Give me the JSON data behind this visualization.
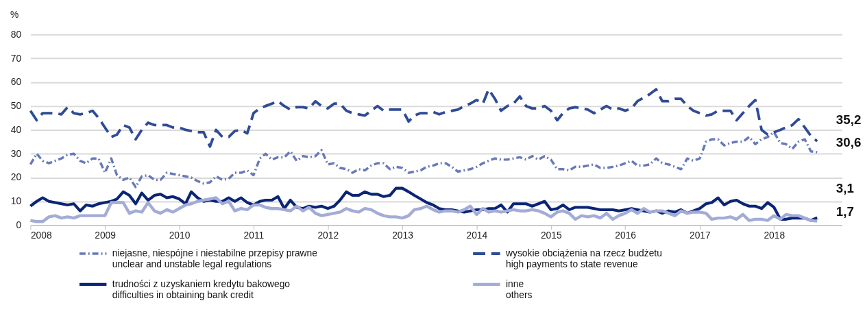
{
  "chart_data": {
    "type": "line",
    "ylabel": "%",
    "x": [
      "2008-01",
      "2008-02",
      "2008-03",
      "2008-04",
      "2008-05",
      "2008-06",
      "2008-07",
      "2008-08",
      "2008-09",
      "2008-10",
      "2008-11",
      "2008-12",
      "2009-01",
      "2009-02",
      "2009-03",
      "2009-04",
      "2009-05",
      "2009-06",
      "2009-07",
      "2009-08",
      "2009-09",
      "2009-10",
      "2009-11",
      "2009-12",
      "2010-01",
      "2010-02",
      "2010-03",
      "2010-04",
      "2010-05",
      "2010-06",
      "2010-07",
      "2010-08",
      "2010-09",
      "2010-10",
      "2010-11",
      "2010-12",
      "2011-01",
      "2011-02",
      "2011-03",
      "2011-04",
      "2011-05",
      "2011-06",
      "2011-07",
      "2011-08",
      "2011-09",
      "2011-10",
      "2011-11",
      "2011-12",
      "2012-01",
      "2012-02",
      "2012-03",
      "2012-04",
      "2012-05",
      "2012-06",
      "2012-07",
      "2012-08",
      "2012-09",
      "2012-10",
      "2012-11",
      "2012-12",
      "2013-01",
      "2013-02",
      "2013-03",
      "2013-04",
      "2013-05",
      "2013-06",
      "2013-07",
      "2013-08",
      "2013-09",
      "2013-10",
      "2013-11",
      "2013-12",
      "2014-01",
      "2014-02",
      "2014-03",
      "2014-04",
      "2014-05",
      "2014-06",
      "2014-07",
      "2014-08",
      "2014-09",
      "2014-10",
      "2014-11",
      "2014-12",
      "2015-01",
      "2015-02",
      "2015-03",
      "2015-04",
      "2015-05",
      "2015-06",
      "2015-07",
      "2015-08",
      "2015-09",
      "2015-10",
      "2015-11",
      "2015-12",
      "2016-01",
      "2016-02",
      "2016-03",
      "2016-04",
      "2016-05",
      "2016-06",
      "2016-07",
      "2016-08",
      "2016-09",
      "2016-10",
      "2016-11",
      "2016-12",
      "2017-01",
      "2017-02",
      "2017-03",
      "2017-04",
      "2017-05",
      "2017-06",
      "2017-07",
      "2017-08",
      "2017-09",
      "2017-10",
      "2017-11",
      "2017-12",
      "2018-01",
      "2018-02",
      "2018-03",
      "2018-04",
      "2018-05",
      "2018-06",
      "2018-07",
      "2018-08"
    ],
    "series": [
      {
        "name": "niejasne, niespójne i niestabilne przepisy prawne\nunclear and unstable legal regulations",
        "color": "#6779b8",
        "line_style": "dashdot",
        "values": [
          25.5,
          30,
          27,
          26,
          27,
          28,
          29.5,
          30,
          27,
          26,
          28,
          28,
          22,
          28,
          21,
          19,
          20,
          16,
          20.5,
          21,
          19,
          19,
          22,
          21.5,
          21,
          20.5,
          20,
          18.5,
          17.5,
          18,
          20.5,
          19,
          19.5,
          22,
          22,
          23,
          21,
          28,
          30,
          27.5,
          28.5,
          28.5,
          31,
          27,
          29,
          28.5,
          29,
          31.5,
          25.5,
          26,
          24,
          23.5,
          22,
          23.5,
          23,
          25,
          26,
          26,
          23.5,
          24.5,
          24,
          22,
          22.5,
          23,
          24.5,
          25,
          26,
          26,
          24.5,
          22.5,
          23,
          23.5,
          24.5,
          26,
          27,
          28,
          27.5,
          27.5,
          28,
          28.5,
          27.5,
          29,
          27.5,
          29,
          27.5,
          23.5,
          23.5,
          23,
          24.5,
          24.5,
          25,
          25.5,
          24,
          24,
          24.5,
          25,
          26,
          27,
          25,
          25,
          25.5,
          28,
          26,
          25.5,
          24.5,
          23.5,
          28,
          27,
          28,
          35,
          36,
          36,
          33.5,
          34.5,
          35,
          35,
          37,
          34,
          36,
          37,
          39,
          34.5,
          34,
          32,
          35,
          36,
          31,
          30.6
        ]
      },
      {
        "name": "wysokie obciążenia na rzecz budżetu\nhigh payments to state revenue",
        "color": "#2f4b96",
        "line_style": "dashed",
        "values": [
          48,
          44,
          47,
          47,
          47,
          46.5,
          49.5,
          47,
          46.5,
          47,
          48,
          45,
          41,
          37,
          38,
          42,
          41,
          36,
          40,
          43,
          42,
          42,
          42,
          41,
          41,
          40,
          39.5,
          39,
          39,
          33,
          40,
          37,
          37,
          39.5,
          40,
          38.5,
          47,
          49,
          50,
          51,
          52,
          50,
          48.5,
          49.5,
          49.5,
          49,
          52,
          50,
          49,
          51,
          51,
          48,
          47,
          46.5,
          46,
          48,
          50,
          48,
          48.5,
          48.5,
          48.5,
          43.5,
          46,
          47,
          47,
          47.5,
          46.5,
          47.5,
          48,
          48.5,
          50,
          51,
          52.5,
          51,
          57,
          53,
          48,
          50,
          51,
          54,
          50,
          49,
          49,
          50,
          48,
          44,
          47,
          49,
          49.5,
          49,
          48.5,
          47,
          48.5,
          50,
          48.5,
          49,
          48,
          49,
          52,
          53.5,
          55,
          57,
          52,
          52,
          53,
          53,
          50,
          48,
          47,
          46,
          46.5,
          48,
          48,
          48,
          44,
          47,
          50,
          52.5,
          40,
          38,
          39,
          40,
          41,
          42,
          44.5,
          41,
          37.5,
          35.2
        ]
      },
      {
        "name": "trudności z uzyskaniem kredytu bakowego\ndifficulties in obtaining bank credit",
        "color": "#0a2576",
        "line_style": "solid",
        "values": [
          8,
          10,
          11.5,
          10,
          9.5,
          9,
          8.5,
          9,
          6,
          8.5,
          8,
          9,
          9.5,
          10,
          11,
          14,
          12.5,
          9,
          13.5,
          10.5,
          12.5,
          13,
          11.5,
          12,
          11,
          9,
          14,
          11.5,
          10,
          10.5,
          10,
          10,
          11.5,
          10,
          11.5,
          9.5,
          8.5,
          10,
          10.5,
          10.5,
          12,
          7,
          10.5,
          7.5,
          7,
          8,
          7.5,
          8,
          7,
          8,
          10.5,
          14,
          12.5,
          12.5,
          14,
          13,
          13,
          12,
          12.5,
          15.5,
          15.5,
          14,
          12.5,
          11,
          9.5,
          8.5,
          7,
          6.5,
          6.5,
          6,
          5.5,
          6,
          6.5,
          6.5,
          7,
          7,
          8.5,
          5.5,
          9,
          9,
          9,
          8,
          9,
          10,
          6.5,
          7,
          8.5,
          6.5,
          7.5,
          7.5,
          7.5,
          7,
          6.5,
          6.5,
          6.5,
          6,
          6.5,
          7,
          6.5,
          6,
          5.5,
          6,
          5,
          6,
          5.5,
          6.5,
          5,
          6,
          7,
          9,
          9.5,
          11.5,
          8.5,
          10,
          10.5,
          9,
          8,
          8,
          7,
          9.5,
          7.5,
          2.5,
          2.5,
          3,
          3,
          3,
          2,
          3.1
        ]
      },
      {
        "name": "inne\nothers",
        "color": "#a3acd6",
        "line_style": "solid",
        "values": [
          2,
          1.5,
          1.5,
          3.5,
          4,
          3,
          3.5,
          3,
          4,
          4,
          4,
          4,
          4,
          9.5,
          9.5,
          9.5,
          5,
          6,
          5.5,
          9.5,
          6,
          5,
          6.5,
          5.5,
          7,
          8.5,
          9,
          10,
          10.5,
          11,
          11.5,
          9,
          10,
          6,
          7,
          6.5,
          8.5,
          8.5,
          7.5,
          7,
          7,
          6.5,
          6,
          8,
          6,
          7.5,
          5,
          4,
          4.5,
          5,
          5.5,
          7,
          6,
          5.5,
          7,
          6.5,
          5,
          4,
          3.5,
          3.5,
          3,
          4,
          6.5,
          7,
          8,
          6.5,
          5.5,
          6,
          6,
          5.5,
          6.5,
          8,
          4.5,
          7,
          5.5,
          6,
          5.5,
          6,
          6.5,
          6,
          6,
          6.5,
          6,
          5,
          3.5,
          5.5,
          6,
          5,
          2.5,
          4,
          3.5,
          4,
          3,
          5,
          2.5,
          4,
          5,
          6.5,
          5,
          7,
          5.5,
          6,
          6,
          5,
          4,
          6,
          5,
          5.5,
          5.5,
          5,
          2.5,
          3,
          3,
          3.5,
          2.5,
          4.5,
          2,
          2.5,
          2.5,
          2,
          4,
          2.5,
          4.5,
          4,
          4,
          3,
          2,
          1.7
        ]
      }
    ],
    "annotations": [
      {
        "text": "35,2",
        "x": "2018-08",
        "y": 35.2
      },
      {
        "text": "30,6",
        "x": "2018-08",
        "y": 30.6
      },
      {
        "text": "3,1",
        "x": "2018-08",
        "y": 3.1
      },
      {
        "text": "1,7",
        "x": "2018-08",
        "y": 1.7
      }
    ],
    "xlim": [
      "2008-01",
      "2018-12"
    ],
    "xticks": [
      "2008",
      "2009",
      "2010",
      "2011",
      "2012",
      "2013",
      "2014",
      "2015",
      "2016",
      "2017",
      "2018"
    ],
    "ylim": [
      0,
      80
    ],
    "yticks": [
      0,
      10,
      20,
      30,
      40,
      50,
      60,
      70,
      80
    ],
    "grid": "y",
    "legend": "bottom"
  }
}
